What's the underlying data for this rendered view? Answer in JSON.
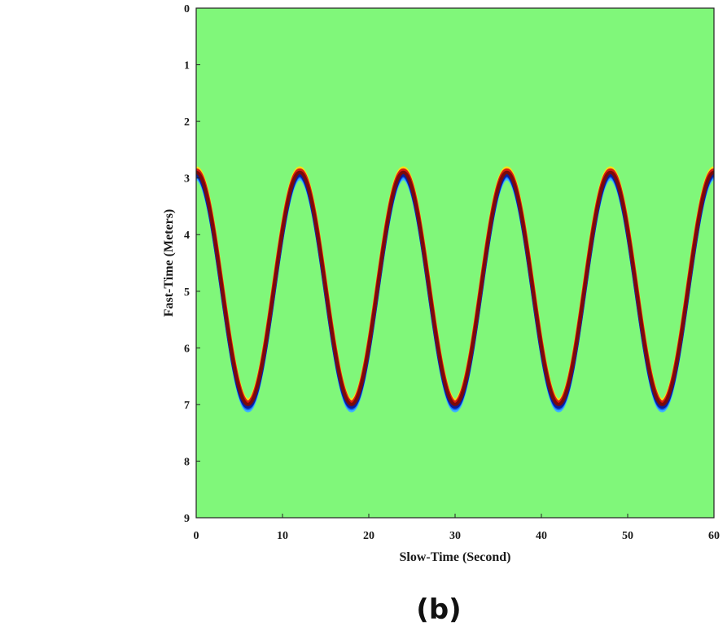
{
  "chart_data": {
    "type": "heatmap",
    "title": "",
    "xlabel": "Slow-Time (Second)",
    "ylabel": "Fast-Time (Meters)",
    "xlim": [
      0,
      60
    ],
    "ylim": [
      0,
      9
    ],
    "y_inverted": true,
    "x_ticks": [
      "0",
      "10",
      "20",
      "30",
      "40",
      "50",
      "60"
    ],
    "y_ticks": [
      "0",
      "1",
      "2",
      "3",
      "4",
      "5",
      "6",
      "7",
      "8",
      "9"
    ],
    "background_color": "#80f77a",
    "signal": {
      "shape": "sinusoid",
      "period_seconds": 12,
      "min_range_meters": 2.9,
      "max_range_meters": 7.0,
      "peak_times_seconds": [
        0,
        12,
        24,
        36,
        48,
        60
      ],
      "trough_times_seconds": [
        6,
        18,
        30,
        42,
        54
      ],
      "band_colors": [
        "#f5e21a",
        "#d81c10",
        "#7a0a0a",
        "#0a1e9a",
        "#1466ff",
        "#3fb4ff"
      ]
    },
    "grid": false,
    "legend": "none"
  },
  "panel_label": "(b)"
}
